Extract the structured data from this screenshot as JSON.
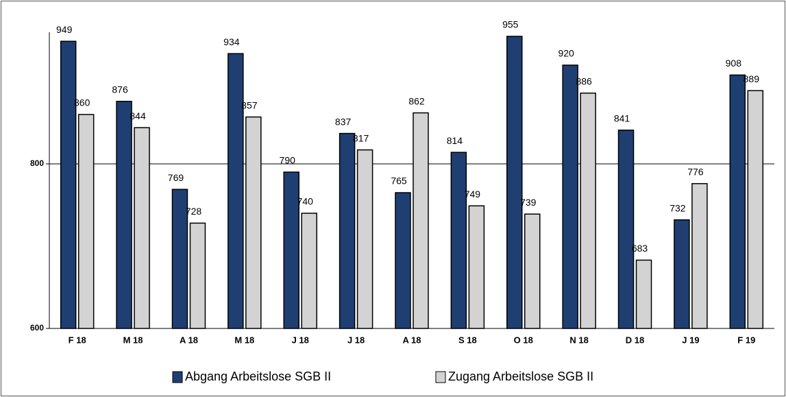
{
  "chart_data": {
    "type": "bar",
    "categories": [
      "F 18",
      "M 18",
      "A 18",
      "M 18",
      "J 18",
      "J 18",
      "A 18",
      "S 18",
      "O 18",
      "N 18",
      "D 18",
      "J 19",
      "F 19"
    ],
    "series": [
      {
        "name": "Abgang Arbeitslose SGB II",
        "color": "#1f3f73",
        "values": [
          949,
          876,
          769,
          934,
          790,
          837,
          765,
          814,
          955,
          920,
          841,
          732,
          908
        ]
      },
      {
        "name": "Zugang Arbeitslose SGB II",
        "color": "#d3d3d3",
        "values": [
          860,
          844,
          728,
          857,
          740,
          817,
          862,
          749,
          739,
          886,
          683,
          776,
          889
        ]
      }
    ],
    "ylim": [
      600,
      960
    ],
    "yticks": [
      600,
      800
    ],
    "grid": true,
    "legend": "bottom"
  }
}
